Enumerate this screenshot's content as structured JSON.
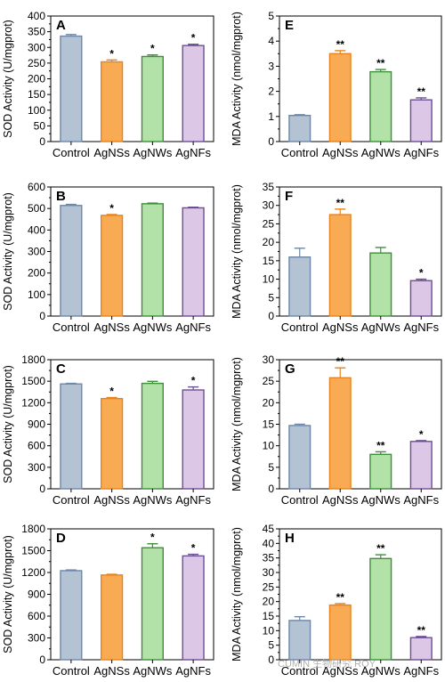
{
  "watermark": "CUMIN 生物研究 ROY",
  "colors": [
    "#b4c3d4",
    "#f9ab54",
    "#b2e2a8",
    "#ddc7e6"
  ],
  "edge_colors": [
    "#6e87a6",
    "#e8821d",
    "#3e8f3a",
    "#6b4e92"
  ],
  "chart_data": [
    {
      "panel": "A",
      "type": "bar",
      "categories": [
        "Control",
        "AgNSs",
        "AgNWs",
        "AgNFs"
      ],
      "values": [
        336,
        254,
        271,
        306
      ],
      "errors": [
        5,
        6,
        5,
        4
      ],
      "significance": [
        "",
        "*",
        "*",
        "*"
      ],
      "ylabel": "SOD Activity (U/mgprot)",
      "ylim": [
        0,
        400
      ],
      "yticks": [
        "0",
        "50",
        "100",
        "150",
        "200",
        "250",
        "300",
        "350",
        "400"
      ]
    },
    {
      "panel": "B",
      "type": "bar",
      "categories": [
        "Control",
        "AgNSs",
        "AgNWs",
        "AgNFs"
      ],
      "values": [
        514,
        468,
        522,
        503
      ],
      "errors": [
        5,
        4,
        3,
        3
      ],
      "significance": [
        "",
        "*",
        "",
        ""
      ],
      "ylabel": "SOD Activity (U/mgprot)",
      "ylim": [
        0,
        600
      ],
      "yticks": [
        "0",
        "100",
        "200",
        "300",
        "400",
        "500",
        "600"
      ]
    },
    {
      "panel": "C",
      "type": "bar",
      "categories": [
        "Control",
        "AgNSs",
        "AgNWs",
        "AgNFs"
      ],
      "values": [
        1462,
        1258,
        1470,
        1378
      ],
      "errors": [
        8,
        14,
        28,
        42
      ],
      "significance": [
        "",
        "*",
        "",
        "*"
      ],
      "ylabel": "SOD Activity (U/mgprot)",
      "ylim": [
        0,
        1800
      ],
      "yticks": [
        "0",
        "300",
        "600",
        "900",
        "1200",
        "1500",
        "1800"
      ]
    },
    {
      "panel": "D",
      "type": "bar",
      "categories": [
        "Control",
        "AgNSs",
        "AgNWs",
        "AgNFs"
      ],
      "values": [
        1225,
        1165,
        1540,
        1428
      ],
      "errors": [
        10,
        10,
        55,
        22
      ],
      "significance": [
        "",
        "",
        "*",
        "*"
      ],
      "ylabel": "SOD Activity (U/mgprot)",
      "ylim": [
        0,
        1800
      ],
      "yticks": [
        "0",
        "300",
        "600",
        "900",
        "1200",
        "1500",
        "1800"
      ]
    },
    {
      "panel": "E",
      "type": "bar",
      "categories": [
        "Control",
        "AgNSs",
        "AgNWs",
        "AgNFs"
      ],
      "values": [
        1.04,
        3.5,
        2.78,
        1.66
      ],
      "errors": [
        0.03,
        0.12,
        0.09,
        0.08
      ],
      "significance": [
        "",
        "**",
        "**",
        "**"
      ],
      "ylabel": "MDA Activity (nmol/mgprot)",
      "ylim": [
        0,
        5
      ],
      "yticks": [
        "0",
        "1",
        "2",
        "3",
        "4",
        "5"
      ]
    },
    {
      "panel": "F",
      "type": "bar",
      "categories": [
        "Control",
        "AgNSs",
        "AgNWs",
        "AgNFs"
      ],
      "values": [
        16,
        27.5,
        17.1,
        9.6
      ],
      "errors": [
        2.4,
        1.5,
        1.5,
        0.4
      ],
      "significance": [
        "",
        "**",
        "",
        "*"
      ],
      "ylabel": "MDA Activity (nmol/mgprot)",
      "ylim": [
        0,
        35
      ],
      "yticks": [
        "0",
        "5",
        "10",
        "15",
        "20",
        "25",
        "30",
        "35"
      ]
    },
    {
      "panel": "G",
      "type": "bar",
      "categories": [
        "Control",
        "AgNSs",
        "AgNWs",
        "AgNFs"
      ],
      "values": [
        14.7,
        25.8,
        8,
        11
      ],
      "errors": [
        0.3,
        2.3,
        0.6,
        0.2
      ],
      "significance": [
        "",
        "**",
        "**",
        "*"
      ],
      "ylabel": "MDA Activity (nmol/mgprot)",
      "ylim": [
        0,
        30
      ],
      "yticks": [
        "0",
        "5",
        "10",
        "15",
        "20",
        "25",
        "30"
      ]
    },
    {
      "panel": "H",
      "type": "bar",
      "categories": [
        "Control",
        "AgNSs",
        "AgNWs",
        "AgNFs"
      ],
      "values": [
        13.5,
        18.8,
        34.8,
        7.6
      ],
      "errors": [
        1.3,
        0.5,
        1.3,
        0.4
      ],
      "significance": [
        "",
        "**",
        "**",
        "**"
      ],
      "ylabel": "MDA Activity (nmol/mgprot)",
      "ylim": [
        0,
        45
      ],
      "yticks": [
        "0",
        "5",
        "10",
        "15",
        "20",
        "25",
        "30",
        "35",
        "40",
        "45"
      ]
    }
  ]
}
